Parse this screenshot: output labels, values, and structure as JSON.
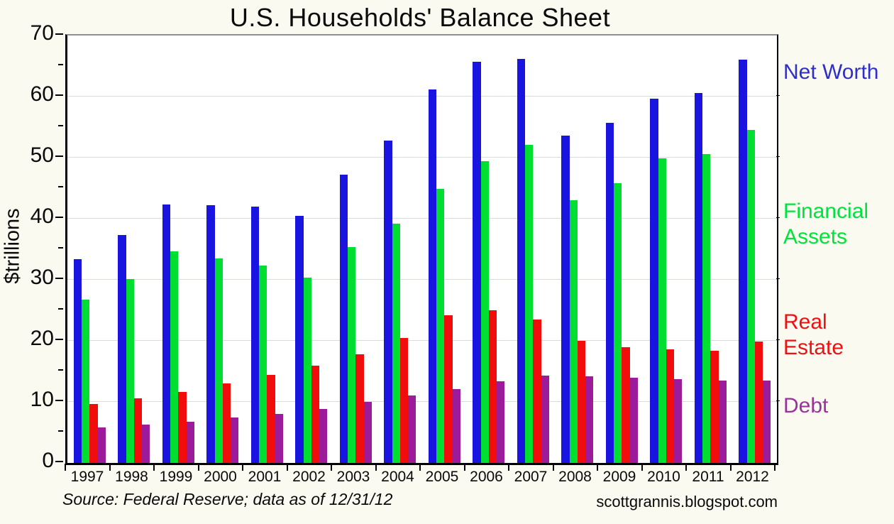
{
  "chart_data": {
    "type": "bar",
    "title": "U.S. Households' Balance Sheet",
    "xlabel": "",
    "ylabel": "$trillions",
    "ylim": [
      0,
      70
    ],
    "y_major_ticks": [
      0,
      10,
      20,
      30,
      40,
      50,
      60,
      70
    ],
    "y_minor_tick_step": 5,
    "grid": "horizontal light-blue gridlines at major ticks",
    "legend_position": "right",
    "categories": [
      "1997",
      "1998",
      "1999",
      "2000",
      "2001",
      "2002",
      "2003",
      "2004",
      "2005",
      "2006",
      "2007",
      "2008",
      "2009",
      "2010",
      "2011",
      "2012"
    ],
    "series": [
      {
        "name": "Net Worth",
        "color": "#1a14e0",
        "label_color": "#2e2ec8",
        "values": [
          33.4,
          37.3,
          42.3,
          42.2,
          42.0,
          40.5,
          47.2,
          52.8,
          61.2,
          65.7,
          66.2,
          53.6,
          55.7,
          59.7,
          60.6,
          66.1
        ]
      },
      {
        "name": "Financial Assets",
        "color": "#00df31",
        "label_color": "#00e23c",
        "values": [
          26.8,
          30.1,
          34.7,
          33.5,
          32.3,
          30.3,
          35.3,
          39.2,
          44.9,
          49.4,
          52.1,
          43.0,
          45.8,
          49.9,
          50.6,
          54.5
        ]
      },
      {
        "name": "Real Estate",
        "color": "#f20d0d",
        "label_color": "#ee1111",
        "values": [
          9.7,
          10.6,
          11.6,
          13.0,
          14.4,
          15.9,
          17.8,
          20.5,
          24.2,
          25.0,
          23.5,
          20.0,
          19.0,
          18.6,
          18.4,
          19.9
        ]
      },
      {
        "name": "Debt",
        "color": "#9b1b9b",
        "label_color": "#993399",
        "values": [
          5.8,
          6.3,
          6.8,
          7.4,
          8.0,
          8.8,
          10.0,
          11.0,
          12.1,
          13.4,
          14.3,
          14.2,
          14.0,
          13.7,
          13.5,
          13.5
        ]
      }
    ]
  },
  "footer": {
    "source": "Source: Federal Reserve; data as of 12/31/12",
    "watermark": "scottgrannis.blogspot.com"
  },
  "colors": {
    "page_background": "#fbfaf1",
    "plot_background": "#ffffff",
    "gridline": "#cbdff2",
    "axis": "#000000",
    "top_frame": "#8f8f8f"
  }
}
